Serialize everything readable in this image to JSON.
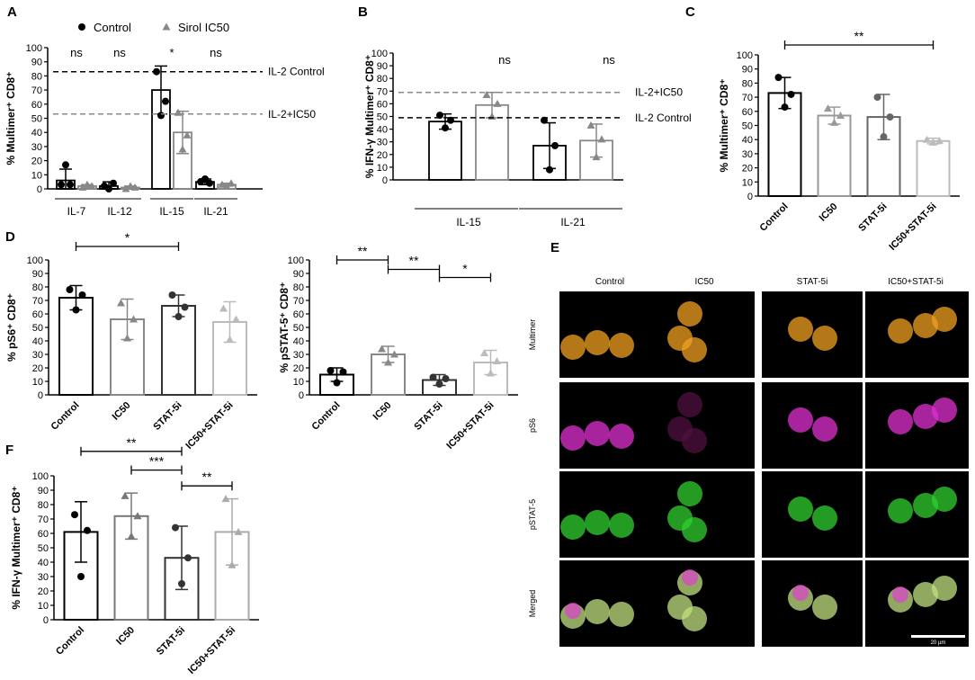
{
  "panel_letters": [
    "A",
    "B",
    "C",
    "D",
    "E",
    "F"
  ],
  "chart_data": [
    {
      "id": "A",
      "type": "bar",
      "ylabel": "% Multimer⁺ CD8⁺",
      "ylim": [
        0,
        100
      ],
      "yticks": [
        0,
        10,
        20,
        30,
        40,
        50,
        60,
        70,
        80,
        90,
        100
      ],
      "categories": [
        "IL-7",
        "IL-12",
        "IL-15",
        "IL-21"
      ],
      "legend": [
        "Control",
        "Sirol IC50"
      ],
      "series": [
        {
          "name": "Control",
          "marker": "circle",
          "color": "#000000",
          "values": [
            6,
            2,
            70,
            5
          ],
          "err": [
            8,
            3,
            17,
            2
          ],
          "points": [
            [
              3,
              17,
              3
            ],
            [
              2,
              0,
              4
            ],
            [
              83,
              52,
              62
            ],
            [
              5,
              7,
              4
            ]
          ]
        },
        {
          "name": "Sirol IC50",
          "marker": "triangle",
          "color": "#888888",
          "values": [
            2,
            1,
            40,
            3
          ],
          "err": [
            1,
            1,
            15,
            1
          ],
          "points": [
            [
              1,
              3,
              2
            ],
            [
              0,
              2,
              1
            ],
            [
              54,
              28,
              38
            ],
            [
              3,
              2,
              4
            ]
          ]
        }
      ],
      "significance": [
        "ns",
        "ns",
        "*",
        "ns"
      ],
      "reference_lines": [
        {
          "label": "IL-2 Control",
          "y": 83,
          "color": "#000000"
        },
        {
          "label": "IL-2+IC50",
          "y": 53,
          "color": "#888888"
        }
      ]
    },
    {
      "id": "B",
      "type": "bar",
      "ylabel": "% IFN-γ Multimer⁺ CD8⁺",
      "ylim": [
        0,
        100
      ],
      "yticks": [
        0,
        10,
        20,
        30,
        40,
        50,
        60,
        70,
        80,
        90,
        100
      ],
      "categories": [
        "IL-15",
        "IL-21"
      ],
      "series": [
        {
          "name": "Control",
          "marker": "circle",
          "color": "#000000",
          "values": [
            46,
            27
          ],
          "err": [
            6,
            18
          ],
          "points": [
            [
              51,
              41,
              47
            ],
            [
              47,
              8,
              27
            ]
          ]
        },
        {
          "name": "Sirol IC50",
          "marker": "triangle",
          "color": "#888888",
          "values": [
            59,
            31
          ],
          "err": [
            10,
            13
          ],
          "points": [
            [
              67,
              50,
              60
            ],
            [
              43,
              18,
              32
            ]
          ]
        }
      ],
      "significance": [
        "ns",
        "ns"
      ],
      "reference_lines": [
        {
          "label": "IL-2+IC50",
          "y": 69,
          "color": "#888888"
        },
        {
          "label": "IL-2 Control",
          "y": 49,
          "color": "#000000"
        }
      ]
    },
    {
      "id": "C",
      "type": "bar",
      "ylabel": "% Multimer⁺ CD8⁺",
      "ylim": [
        0,
        100
      ],
      "yticks": [
        0,
        10,
        20,
        30,
        40,
        50,
        60,
        70,
        80,
        90,
        100
      ],
      "categories": [
        "Control",
        "IC50",
        "STAT-5i",
        "IC50+STAT-5i"
      ],
      "colors": [
        "#000000",
        "#999999",
        "#666666",
        "#bbbbbb"
      ],
      "markers": [
        "circle",
        "triangle",
        "circle",
        "triangle"
      ],
      "values": [
        73,
        57,
        56,
        39
      ],
      "err": [
        11,
        6,
        16,
        2
      ],
      "points": [
        [
          84,
          63,
          72
        ],
        [
          62,
          52,
          57
        ],
        [
          70,
          42,
          56
        ],
        [
          40,
          38,
          39
        ]
      ],
      "brackets": [
        {
          "from": 0,
          "to": 3,
          "label": "**",
          "y": 107
        }
      ]
    },
    {
      "id": "D1",
      "type": "bar",
      "ylabel": "% pS6⁺ CD8⁺",
      "ylim": [
        0,
        100
      ],
      "yticks": [
        0,
        10,
        20,
        30,
        40,
        50,
        60,
        70,
        80,
        90,
        100
      ],
      "categories": [
        "Control",
        "IC50",
        "STAT-5i",
        "IC50+STAT-5i"
      ],
      "colors": [
        "#000000",
        "#888888",
        "#333333",
        "#bbbbbb"
      ],
      "markers": [
        "circle",
        "triangle",
        "circle",
        "triangle"
      ],
      "values": [
        72,
        56,
        66,
        54
      ],
      "err": [
        9,
        15,
        8,
        15
      ],
      "points": [
        [
          78,
          63,
          74
        ],
        [
          68,
          42,
          56
        ],
        [
          74,
          58,
          65
        ],
        [
          64,
          41,
          56
        ]
      ],
      "brackets": [
        {
          "from": 0,
          "to": 2,
          "label": "*",
          "y": 110
        }
      ]
    },
    {
      "id": "D2",
      "type": "bar",
      "ylabel": "% pSTAT-5⁺ CD8⁺",
      "ylim": [
        0,
        100
      ],
      "yticks": [
        0,
        10,
        20,
        30,
        40,
        50,
        60,
        70,
        80,
        90,
        100
      ],
      "categories": [
        "Control",
        "IC50",
        "STAT-5i",
        "IC50+STAT-5i"
      ],
      "colors": [
        "#000000",
        "#888888",
        "#333333",
        "#bbbbbb"
      ],
      "markers": [
        "circle",
        "triangle",
        "circle",
        "triangle"
      ],
      "values": [
        15,
        30,
        11,
        24
      ],
      "err": [
        5,
        6,
        4,
        9
      ],
      "points": [
        [
          18,
          9,
          17
        ],
        [
          34,
          24,
          30
        ],
        [
          13,
          8,
          12
        ],
        [
          31,
          16,
          25
        ]
      ],
      "brackets": [
        {
          "from": 0,
          "to": 1,
          "label": "**",
          "y": 100
        },
        {
          "from": 1,
          "to": 2,
          "label": "**",
          "y": 93
        },
        {
          "from": 2,
          "to": 3,
          "label": "*",
          "y": 87
        }
      ]
    },
    {
      "id": "F",
      "type": "bar",
      "ylabel": "% IFN-γ Multimer⁺ CD8⁺",
      "ylim": [
        0,
        100
      ],
      "yticks": [
        0,
        10,
        20,
        30,
        40,
        50,
        60,
        70,
        80,
        90,
        100
      ],
      "categories": [
        "Control",
        "IC50",
        "STAT-5i",
        "IC50+STAT-5i"
      ],
      "colors": [
        "#000000",
        "#777777",
        "#333333",
        "#aaaaaa"
      ],
      "markers": [
        "circle",
        "triangle",
        "circle",
        "triangle"
      ],
      "values": [
        61,
        72,
        43,
        61
      ],
      "err": [
        21,
        16,
        22,
        23
      ],
      "points": [
        [
          73,
          30,
          62
        ],
        [
          86,
          58,
          72
        ],
        [
          64,
          25,
          43
        ],
        [
          84,
          38,
          61
        ]
      ],
      "brackets": [
        {
          "from": 0,
          "to": 2,
          "label": "**",
          "y": 117
        },
        {
          "from": 1,
          "to": 2,
          "label": "***",
          "y": 104
        },
        {
          "from": 2,
          "to": 3,
          "label": "**",
          "y": 93
        }
      ]
    }
  ],
  "microscopy": {
    "columns": [
      "Control",
      "IC50",
      "STAT-5i",
      "IC50+STAT-5i"
    ],
    "rows": [
      {
        "label": "Multimer",
        "color": "#f0a020"
      },
      {
        "label": "pS6",
        "color": "#e030d0"
      },
      {
        "label": "pSTAT-5",
        "color": "#30d030"
      },
      {
        "label": "Merged",
        "color": "#c0e080"
      }
    ],
    "scalebar_label": "20 µm"
  }
}
